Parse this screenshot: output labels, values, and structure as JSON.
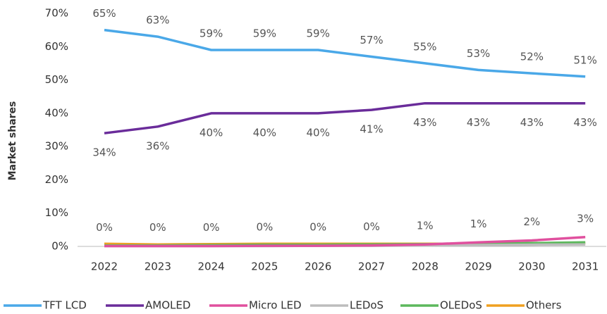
{
  "chart_data": {
    "type": "line",
    "y_label": "Market shares",
    "categories": [
      "2022",
      "2023",
      "2024",
      "2025",
      "2026",
      "2027",
      "2028",
      "2029",
      "2030",
      "2031"
    ],
    "ylim": [
      0,
      70
    ],
    "yticks": [
      {
        "value": 0,
        "label": "0%"
      },
      {
        "value": 10,
        "label": "10%"
      },
      {
        "value": 20,
        "label": "20%"
      },
      {
        "value": 30,
        "label": "30%"
      },
      {
        "value": 40,
        "label": "40%"
      },
      {
        "value": 50,
        "label": "50%"
      },
      {
        "value": 60,
        "label": "60%"
      },
      {
        "value": 70,
        "label": "70%"
      }
    ],
    "grid": false,
    "legend": "bottom",
    "series": [
      {
        "name": "TFT LCD",
        "color": "#4aa8e8",
        "values": [
          65,
          63,
          59,
          59,
          59,
          57,
          55,
          53,
          52,
          51
        ],
        "value_labels": [
          "65%",
          "63%",
          "59%",
          "59%",
          "59%",
          "57%",
          "55%",
          "53%",
          "52%",
          "51%"
        ]
      },
      {
        "name": "AMOLED",
        "color": "#6a2c9a",
        "values": [
          34,
          36,
          40,
          40,
          40,
          41,
          43,
          43,
          43,
          43
        ],
        "value_labels": [
          "34%",
          "36%",
          "40%",
          "40%",
          "40%",
          "41%",
          "43%",
          "43%",
          "43%",
          "43%"
        ]
      },
      {
        "name": "Micro LED",
        "color": "#e0509e",
        "values": [
          0.1,
          0.1,
          0.1,
          0.2,
          0.2,
          0.3,
          0.6,
          1.2,
          1.8,
          2.8
        ],
        "value_labels": [
          "0%",
          "0%",
          "0%",
          "0%",
          "0%",
          "0%",
          "1%",
          "1%",
          "2%",
          "3%"
        ]
      },
      {
        "name": "LEDoS",
        "color": "#bdbdbd",
        "values": [
          0.1,
          0.1,
          0.1,
          0.1,
          0.2,
          0.2,
          0.3,
          0.4,
          0.5,
          0.6
        ]
      },
      {
        "name": "OLEDoS",
        "color": "#5cb85c",
        "values": [
          0.3,
          0.3,
          0.4,
          0.5,
          0.5,
          0.6,
          0.7,
          0.8,
          1.0,
          1.2
        ]
      },
      {
        "name": "Others",
        "color": "#f0a020",
        "values": [
          0.8,
          0.6,
          0.7,
          0.8,
          0.8,
          0.8,
          0.8,
          0.8,
          0.9,
          0.9
        ]
      }
    ]
  }
}
